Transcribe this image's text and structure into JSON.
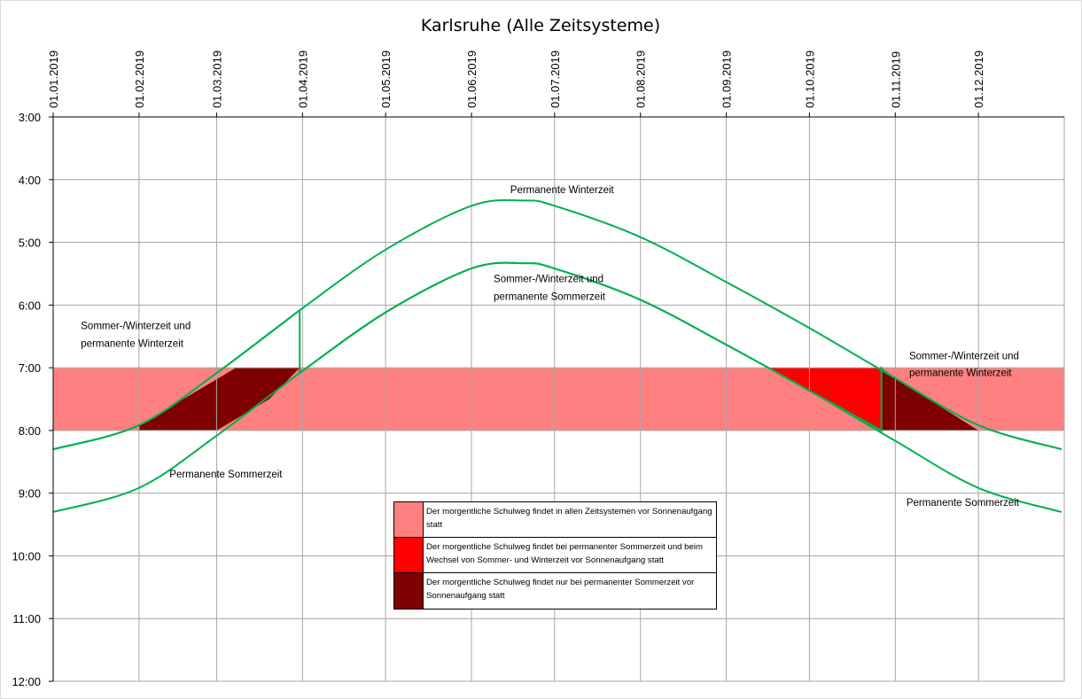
{
  "chart_data": {
    "type": "line",
    "title": "Karlsruhe (Alle Zeitsysteme)",
    "x_tick_labels": [
      "01.01.2019",
      "01.02.2019",
      "01.03.2019",
      "01.04.2019",
      "01.05.2019",
      "01.06.2019",
      "01.07.2019",
      "01.08.2019",
      "01.09.2019",
      "01.10.2019",
      "01.11.2019",
      "01.12.2019"
    ],
    "y_tick_labels": [
      "3:00",
      "4:00",
      "5:00",
      "6:00",
      "7:00",
      "8:00",
      "9:00",
      "10:00",
      "11:00",
      "12:00"
    ],
    "xlim": [
      "2019-01-01",
      "2019-12-31"
    ],
    "ylim": [
      "3:00",
      "12:00"
    ],
    "y_inverted": true,
    "grid": true,
    "series": [
      {
        "name": "Permanente Winterzeit",
        "color": "#00b050",
        "x": [
          "2019-01-01",
          "2019-02-01",
          "2019-03-01",
          "2019-04-01",
          "2019-05-01",
          "2019-06-01",
          "2019-06-20",
          "2019-07-01",
          "2019-08-01",
          "2019-09-01",
          "2019-10-01",
          "2019-11-01",
          "2019-12-01",
          "2019-12-31"
        ],
        "y": [
          "8:18",
          "7:55",
          "7:05",
          "6:03",
          "5:07",
          "4:25",
          "4:20",
          "4:25",
          "4:55",
          "5:38",
          "6:22",
          "7:10",
          "7:55",
          "8:18"
        ]
      },
      {
        "name": "Permanente Sommerzeit",
        "color": "#00b050",
        "x": [
          "2019-01-01",
          "2019-02-01",
          "2019-03-01",
          "2019-04-01",
          "2019-05-01",
          "2019-06-01",
          "2019-06-20",
          "2019-07-01",
          "2019-08-01",
          "2019-09-01",
          "2019-10-01",
          "2019-11-01",
          "2019-12-01",
          "2019-12-31"
        ],
        "y": [
          "9:18",
          "8:55",
          "8:05",
          "7:03",
          "6:07",
          "5:25",
          "5:20",
          "5:25",
          "5:55",
          "6:38",
          "7:22",
          "8:10",
          "8:55",
          "9:18"
        ]
      },
      {
        "name": "Sommer-/Winterzeit",
        "color": "#00b050",
        "x": [
          "2019-01-01",
          "2019-02-01",
          "2019-03-01",
          "2019-03-31",
          "2019-03-31",
          "2019-05-01",
          "2019-06-01",
          "2019-06-20",
          "2019-07-01",
          "2019-08-01",
          "2019-09-01",
          "2019-10-01",
          "2019-10-27",
          "2019-10-27",
          "2019-11-01",
          "2019-12-01",
          "2019-12-31"
        ],
        "y": [
          "8:18",
          "7:55",
          "7:05",
          "6:05",
          "7:05",
          "6:07",
          "5:25",
          "5:20",
          "5:25",
          "5:55",
          "6:38",
          "7:22",
          "8:00",
          "7:00",
          "7:10",
          "7:55",
          "8:18"
        ]
      }
    ],
    "bands": [
      {
        "from": "7:00",
        "to": "8:00",
        "color": "#ff8080"
      }
    ],
    "regions": [
      {
        "color": "#7f0000",
        "x": [
          "2019-02-01",
          "2019-03-08",
          "2019-03-31",
          "2019-03-20",
          "2019-03-01",
          "2019-02-01"
        ],
        "y": [
          "7:55",
          "7:00",
          "7:00",
          "7:30",
          "8:00",
          "8:00"
        ]
      },
      {
        "color": "#ff0000",
        "x": [
          "2019-09-16",
          "2019-10-27",
          "2019-10-27",
          "2019-10-01"
        ],
        "y": [
          "7:00",
          "7:00",
          "8:00",
          "7:22"
        ]
      },
      {
        "color": "#7f0000",
        "x": [
          "2019-10-27",
          "2019-11-01",
          "2019-12-01",
          "2019-10-27"
        ],
        "y": [
          "7:00",
          "7:10",
          "8:00",
          "8:00"
        ]
      }
    ],
    "annotations": [
      {
        "text": "Permanente Winterzeit",
        "at": [
          "2019-06-15",
          "4:13"
        ]
      },
      {
        "text": "Sommer-/Winterzeit und",
        "at": [
          "2019-06-09",
          "5:38"
        ]
      },
      {
        "text": "permanente Sommerzeit",
        "at": [
          "2019-06-09",
          "5:55"
        ]
      },
      {
        "text": "Sommer-/Winterzeit und",
        "at": [
          "2019-01-11",
          "6:23"
        ]
      },
      {
        "text": "permanente Winterzeit",
        "at": [
          "2019-01-11",
          "6:40"
        ]
      },
      {
        "text": "Permanente Sommerzeit",
        "at": [
          "2019-02-12",
          "8:45"
        ]
      },
      {
        "text": "Sommer-/Winterzeit und",
        "at": [
          "2019-11-06",
          "6:52"
        ]
      },
      {
        "text": "permanente Winterzeit",
        "at": [
          "2019-11-06",
          "7:08"
        ]
      },
      {
        "text": "Permanente Sommerzeit",
        "at": [
          "2019-11-05",
          "9:12"
        ]
      }
    ],
    "legend": {
      "position": "bottom-center",
      "items": [
        {
          "color": "#ff8080",
          "text": "Der morgentliche Schulweg findet in allen Zeitsystemen vor Sonnenaufgang statt"
        },
        {
          "color": "#ff0000",
          "text": "Der morgentliche Schulweg findet bei permanenter Sommerzeit und beim Wechsel von Sommer- und Winterzeit vor Sonnenaufgang statt"
        },
        {
          "color": "#7f0000",
          "text": "Der morgentliche Schulweg findet nur bei permanenter Sommerzeit vor Sonnenaufgang statt"
        }
      ]
    }
  }
}
